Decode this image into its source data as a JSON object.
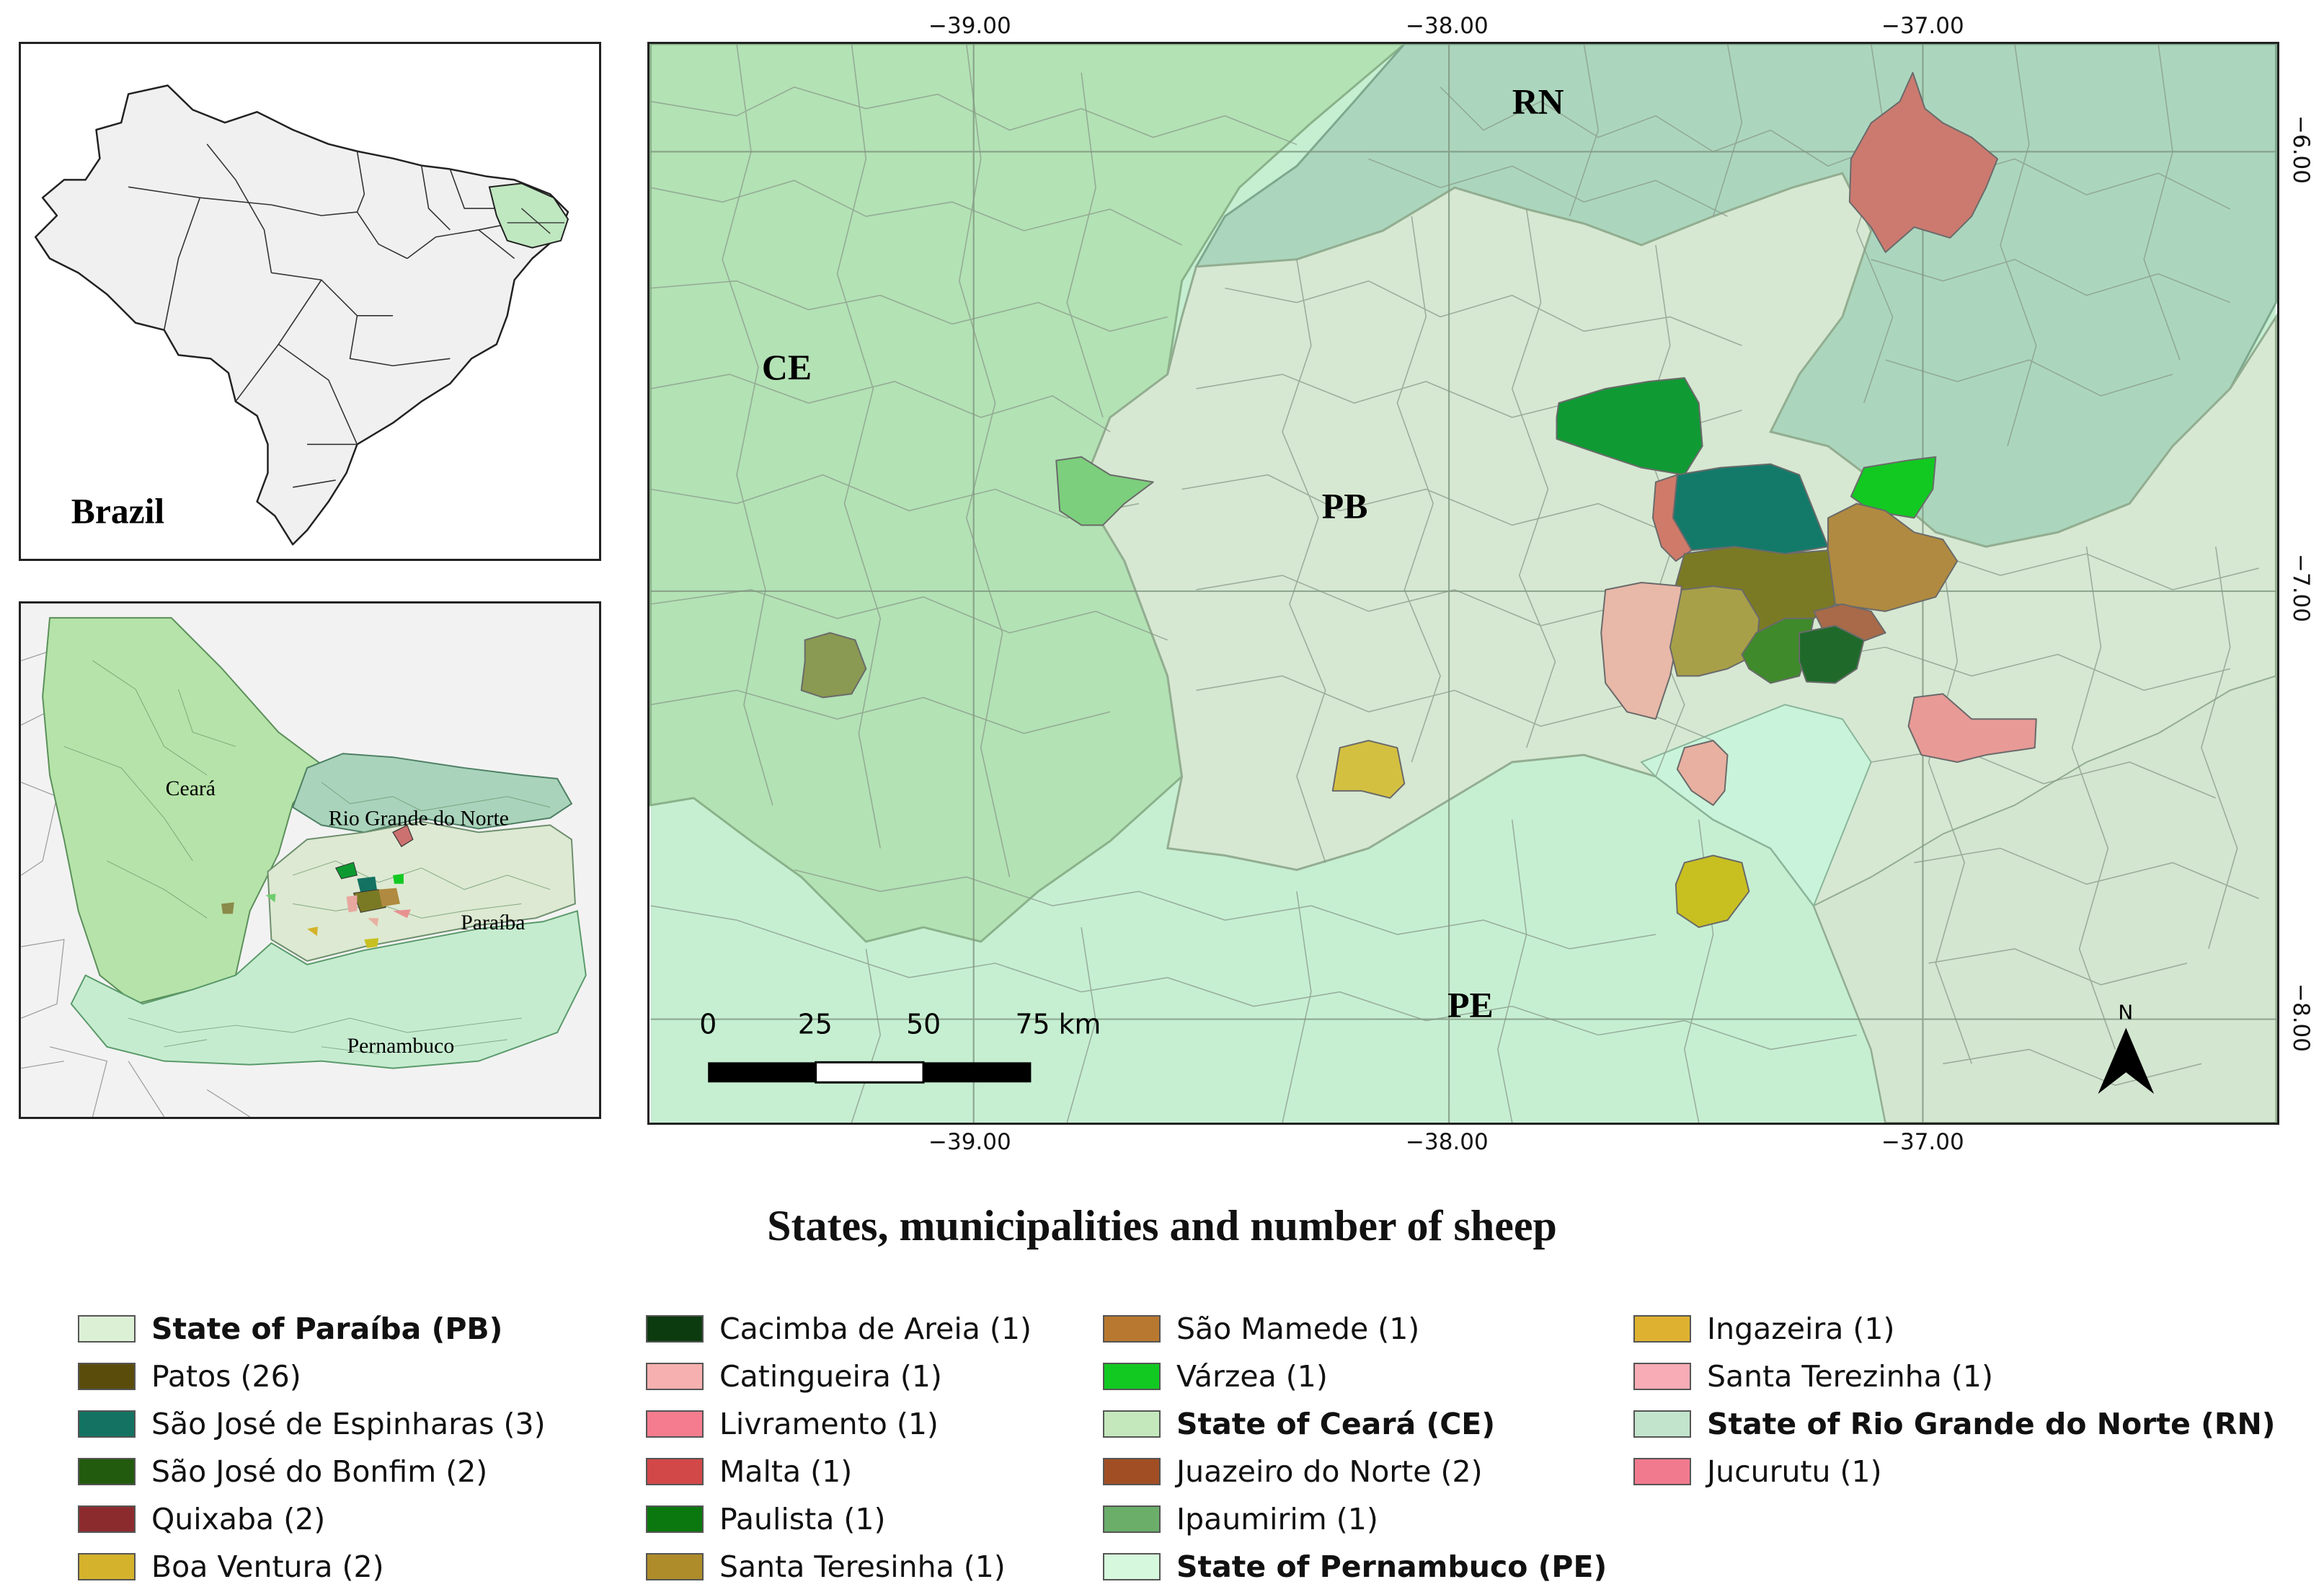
{
  "inset_brazil": {
    "label": "Brazil"
  },
  "inset_region": {
    "labels": {
      "ceara": "Ceará",
      "rn": "Rio Grande do Norte",
      "pb": "Paraíba",
      "pe": "Pernambuco"
    }
  },
  "main_map": {
    "state_labels": {
      "rn": "RN",
      "ce": "CE",
      "pb": "PB",
      "pe": "PE"
    },
    "longitude_ticks": [
      "−39.00",
      "−38.00",
      "−37.00"
    ],
    "latitude_ticks": [
      "−6.00",
      "−7.00",
      "−8.00"
    ],
    "scale_bar": {
      "labels": [
        "0",
        "25",
        "50",
        "75 km"
      ]
    },
    "north_arrow": {
      "label": "N",
      "icon": "north-arrow-icon"
    },
    "colors": {
      "ceara": "#b3e2b5",
      "rn": "#abd6bd",
      "paraiba": "#d6e8d2",
      "pernambuco": "#c4ecd0"
    }
  },
  "title": "States, municipalities and number of sheep",
  "legend": {
    "columns": [
      [
        {
          "label": "State of Paraíba (PB)",
          "color": "#dcf0d6",
          "bold": true
        },
        {
          "label": "Patos (26)",
          "color": "#5a4d0c",
          "bold": false
        },
        {
          "label": "São José de Espinharas (3)",
          "color": "#137262",
          "bold": false
        },
        {
          "label": "São José do Bonfim (2)",
          "color": "#225a0e",
          "bold": false
        },
        {
          "label": "Quixaba (2)",
          "color": "#8c2b2e",
          "bold": false
        },
        {
          "label": "Boa Ventura (2)",
          "color": "#d4b22c",
          "bold": false
        }
      ],
      [
        {
          "label": "Cacimba de Areia (1)",
          "color": "#0d3b10",
          "bold": false
        },
        {
          "label": "Catingueira (1)",
          "color": "#f6b0b0",
          "bold": false
        },
        {
          "label": "Livramento (1)",
          "color": "#f57c8e",
          "bold": false
        },
        {
          "label": "Malta (1)",
          "color": "#d24848",
          "bold": false
        },
        {
          "label": "Paulista (1)",
          "color": "#0a780e",
          "bold": false
        },
        {
          "label": "Santa Teresinha (1)",
          "color": "#ae8c2a",
          "bold": false
        }
      ],
      [
        {
          "label": "São Mamede (1)",
          "color": "#b97830",
          "bold": false
        },
        {
          "label": "Várzea (1)",
          "color": "#12c922",
          "bold": false
        },
        {
          "label": "State of Ceará (CE)",
          "color": "#c4e8bc",
          "bold": true
        },
        {
          "label": "Juazeiro do Norte (2)",
          "color": "#a24e24",
          "bold": false
        },
        {
          "label": "Ipaumirim (1)",
          "color": "#6aae6a",
          "bold": false
        },
        {
          "label": "State of Pernambuco (PE)",
          "color": "#d6f8dc",
          "bold": true
        }
      ],
      [
        {
          "label": "Ingazeira (1)",
          "color": "#deb230",
          "bold": false
        },
        {
          "label": "Santa Terezinha (1)",
          "color": "#f8acb6",
          "bold": false
        },
        {
          "label": "State of Rio Grande do Norte (RN)",
          "color": "#c2e4cc",
          "bold": true
        },
        {
          "label": "Jucurutu (1)",
          "color": "#f27a8e",
          "bold": false
        }
      ]
    ]
  }
}
